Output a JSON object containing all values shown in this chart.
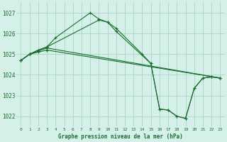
{
  "background_color": "#d4f0e8",
  "grid_color": "#aad4c8",
  "line_color": "#1a6e2e",
  "title": "Graphe pression niveau de la mer (hPa)",
  "xlim": [
    -0.5,
    23.5
  ],
  "ylim": [
    1021.5,
    1027.5
  ],
  "yticks": [
    1022,
    1023,
    1024,
    1025,
    1026,
    1027
  ],
  "xticks": [
    0,
    1,
    2,
    3,
    4,
    5,
    6,
    7,
    8,
    9,
    10,
    11,
    12,
    13,
    14,
    15,
    16,
    17,
    18,
    19,
    20,
    21,
    22,
    23
  ],
  "series": [
    {
      "x": [
        0,
        1,
        2,
        3,
        4,
        8,
        9,
        10,
        11,
        14,
        15,
        16,
        17,
        18,
        19,
        20,
        21,
        22,
        23
      ],
      "y": [
        1024.7,
        1025.0,
        1025.2,
        1025.35,
        1025.8,
        1027.0,
        1026.7,
        1026.55,
        1026.25,
        1025.0,
        1024.55,
        1022.35,
        1022.3,
        1022.0,
        1021.9,
        1023.35,
        1023.85,
        1023.9,
        1023.85
      ]
    },
    {
      "x": [
        0,
        1,
        2,
        3,
        9,
        10,
        11,
        15,
        16,
        17,
        18,
        19,
        20,
        21,
        22,
        23
      ],
      "y": [
        1024.7,
        1025.0,
        1025.2,
        1025.35,
        1026.65,
        1026.55,
        1026.1,
        1024.55,
        1022.35,
        1022.3,
        1022.0,
        1021.9,
        1023.35,
        1023.85,
        1023.9,
        1023.85
      ]
    },
    {
      "x": [
        0,
        1,
        2,
        3,
        23
      ],
      "y": [
        1024.7,
        1025.0,
        1025.15,
        1025.3,
        1023.85
      ]
    },
    {
      "x": [
        0,
        1,
        2,
        3,
        23
      ],
      "y": [
        1024.7,
        1025.0,
        1025.1,
        1025.2,
        1023.85
      ]
    }
  ]
}
